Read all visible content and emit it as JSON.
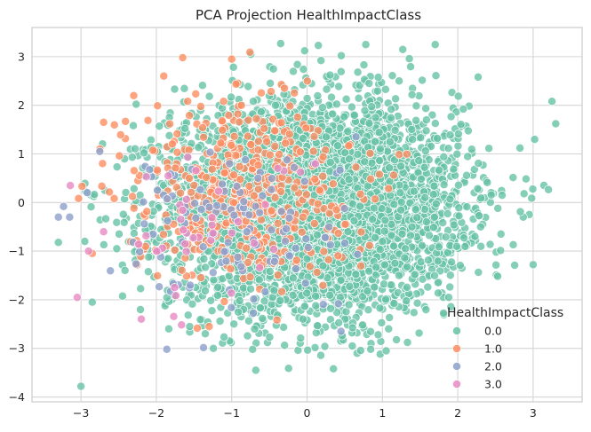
{
  "chart_data": {
    "type": "scatter",
    "title": "PCA Projection HealthImpactClass",
    "xlabel": "",
    "ylabel": "",
    "xlim": [
      -3.65,
      3.65
    ],
    "ylim": [
      -4.1,
      3.6
    ],
    "xticks": [
      -3,
      -2,
      -1,
      0,
      1,
      2,
      3
    ],
    "yticks": [
      -4,
      -3,
      -2,
      -1,
      0,
      1,
      2,
      3
    ],
    "xtick_labels": [
      "−3",
      "−2",
      "−1",
      "0",
      "1",
      "2",
      "3"
    ],
    "ytick_labels": [
      "−4",
      "−3",
      "−2",
      "−1",
      "0",
      "1",
      "2",
      "3"
    ],
    "grid": true,
    "legend": {
      "title": "HealthImpactClass",
      "placement": "lower-right",
      "entries": [
        "0.0",
        "1.0",
        "2.0",
        "3.0"
      ]
    },
    "colors": [
      "#66c2a5",
      "#fc8d62",
      "#8da0cb",
      "#e78ac3"
    ],
    "series": [
      {
        "name": "0.0",
        "approx_count": 5000,
        "center": [
          0.1,
          -0.1
        ],
        "spread": [
          0.95,
          1.05
        ],
        "points": [
          [
            -3.0,
            -3.78
          ],
          [
            -2.95,
            -0.8
          ],
          [
            -3.3,
            -0.82
          ],
          [
            -2.85,
            -2.05
          ],
          [
            -0.35,
            3.27
          ],
          [
            0.15,
            3.23
          ],
          [
            0.78,
            3.25
          ],
          [
            1.27,
            3.15
          ],
          [
            1.7,
            3.25
          ],
          [
            2.27,
            2.58
          ],
          [
            3.25,
            2.08
          ],
          [
            3.3,
            1.62
          ],
          [
            3.02,
            1.3
          ],
          [
            3.0,
            -1.28
          ],
          [
            2.88,
            0.18
          ],
          [
            1.05,
            -3.05
          ],
          [
            0.35,
            -3.42
          ],
          [
            -0.68,
            -3.45
          ],
          [
            0.6,
            -2.95
          ],
          [
            -1.35,
            -2.7
          ]
        ]
      },
      {
        "name": "1.0",
        "approx_count": 450,
        "center": [
          -0.9,
          0.3
        ],
        "spread": [
          0.75,
          0.95
        ],
        "points": [
          [
            -1.65,
            2.98
          ],
          [
            -1.0,
            2.95
          ],
          [
            -2.3,
            2.2
          ],
          [
            -2.7,
            1.65
          ],
          [
            -2.85,
            -1.05
          ],
          [
            -1.3,
            -2.55
          ],
          [
            -0.6,
            -1.3
          ],
          [
            -0.3,
            2.35
          ]
        ]
      },
      {
        "name": "2.0",
        "approx_count": 120,
        "center": [
          -1.0,
          -0.5
        ],
        "spread": [
          0.8,
          0.9
        ],
        "points": [
          [
            -3.3,
            -0.3
          ],
          [
            -3.15,
            -0.3
          ],
          [
            -2.75,
            1.05
          ],
          [
            -1.55,
            -1.7
          ],
          [
            0.45,
            -2.65
          ],
          [
            0.65,
            1.35
          ]
        ]
      },
      {
        "name": "3.0",
        "approx_count": 40,
        "center": [
          -1.4,
          -0.6
        ],
        "spread": [
          0.7,
          0.8
        ],
        "points": [
          [
            -3.05,
            -1.95
          ],
          [
            -2.2,
            -2.4
          ],
          [
            -2.7,
            -0.6
          ],
          [
            -2.9,
            -1.0
          ]
        ]
      }
    ]
  }
}
